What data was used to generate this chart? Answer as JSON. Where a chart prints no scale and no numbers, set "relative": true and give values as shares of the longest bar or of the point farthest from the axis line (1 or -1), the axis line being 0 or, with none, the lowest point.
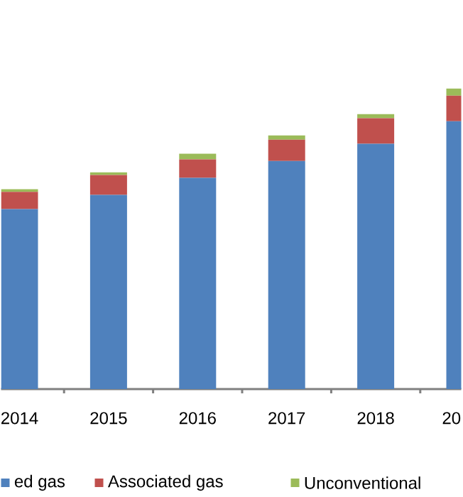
{
  "chart_data": {
    "type": "bar",
    "stacked": true,
    "relative": true,
    "legend": "bottom",
    "categories": [
      "2014",
      "2015",
      "2016",
      "2017",
      "2018",
      "20"
    ],
    "series": [
      {
        "name": "ed gas",
        "color": "#4f81bd",
        "values": [
          0.599,
          0.646,
          0.703,
          0.759,
          0.816,
          0.891
        ]
      },
      {
        "name": "Associated gas",
        "color": "#c0504d",
        "values": [
          0.057,
          0.066,
          0.061,
          0.071,
          0.085,
          0.085
        ]
      },
      {
        "name": "Unconventional",
        "color": "#9bbb59",
        "values": [
          0.009,
          0.009,
          0.019,
          0.014,
          0.014,
          0.024
        ]
      }
    ]
  }
}
